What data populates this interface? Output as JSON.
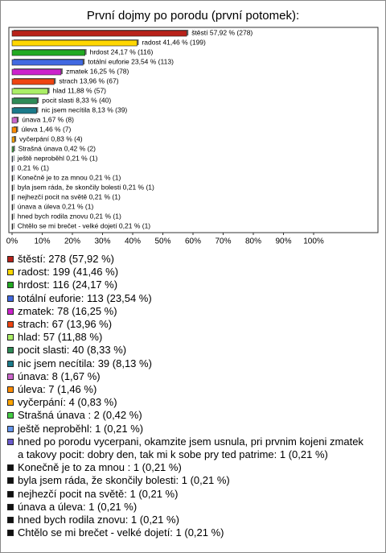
{
  "chart_data": {
    "type": "bar",
    "orientation": "horizontal",
    "title": "První dojmy po porodu (první potomek):",
    "values": [
      57.92,
      41.46,
      24.17,
      23.54,
      16.25,
      13.96,
      11.88,
      8.33,
      8.13,
      1.67,
      1.46,
      0.83,
      0.42,
      0.21,
      0.21,
      0.21,
      0.21,
      0.21,
      0.21,
      0.21,
      0.21
    ],
    "value_labels": [
      "štěstí 57,92 % (278)",
      "radost 41,46 % (199)",
      "hrdost 24,17 % (116)",
      "totální euforie 23,54 % (113)",
      "zmatek 16,25 % (78)",
      "strach 13,96 % (67)",
      "hlad 11,88 % (57)",
      "pocit slasti 8,33 % (40)",
      "nic jsem necítila 8,13 % (39)",
      "únava 1,67 % (8)",
      "úleva 1,46 % (7)",
      "vyčerpání 0,83 % (4)",
      "Strašná únava  0,42 % (2)",
      "ještě neproběhl 0,21 % (1)",
      "0,21 % (1)",
      "Konečně je to za mnou  0,21 % (1)",
      "byla jsem ráda, že skončily bolesti 0,21 % (1)",
      "nejhezčí pocit na světě 0,21 % (1)",
      "únava a úleva 0,21 % (1)",
      "hned bych rodila znovu 0,21 % (1)",
      "Chtělo se mi brečet - velké dojetí 0,21 % (1)"
    ],
    "legend": [
      "štěstí: 278 (57,92 %)",
      "radost: 199 (41,46 %)",
      "hrdost: 116 (24,17 %)",
      "totální euforie: 113 (23,54 %)",
      "zmatek: 78 (16,25 %)",
      "strach: 67 (13,96 %)",
      "hlad: 57 (11,88 %)",
      "pocit slasti: 40 (8,33 %)",
      "nic jsem necítila: 39 (8,13 %)",
      "únava: 8 (1,67 %)",
      "úleva: 7 (1,46 %)",
      "vyčerpání: 4 (0,83 %)",
      "Strašná únava : 2 (0,42 %)",
      "ještě neproběhl: 1 (0,21 %)",
      "hned po porodu vycerpani, okamzite jsem usnula, pri prvnim kojeni zmatek a takovy pocit: dobry den, tak mi k sobe pry ted patrime: 1 (0,21 %)",
      "Konečně je to za mnou : 1 (0,21 %)",
      "byla jsem ráda, že skončily bolesti: 1 (0,21 %)",
      "nejhezčí pocit na světě: 1 (0,21 %)",
      "únava a úleva: 1 (0,21 %)",
      "hned bych rodila znovu: 1 (0,21 %)",
      "Chtělo se mi brečet - velké dojetí: 1 (0,21 %)"
    ],
    "colors": [
      "#b8221a",
      "#ffd700",
      "#22aa22",
      "#4169e1",
      "#cc22cc",
      "#ee4411",
      "#aaee66",
      "#2e8b57",
      "#1a7a8a",
      "#cc66cc",
      "#ff8c00",
      "#ffa500",
      "#44cc44",
      "#6495ed",
      "#6a5acd",
      "#111111",
      "#111111",
      "#111111",
      "#111111",
      "#111111",
      "#111111"
    ],
    "xlim": [
      0,
      100
    ],
    "xticks": [
      {
        "value": 0,
        "label": "0%"
      },
      {
        "value": 10,
        "label": "10%"
      },
      {
        "value": 20,
        "label": "20%"
      },
      {
        "value": 30,
        "label": "30%"
      },
      {
        "value": 40,
        "label": "40%"
      },
      {
        "value": 50,
        "label": "50%"
      },
      {
        "value": 60,
        "label": "60%"
      },
      {
        "value": 70,
        "label": "70%"
      },
      {
        "value": 80,
        "label": "80%"
      },
      {
        "value": 90,
        "label": "90%"
      },
      {
        "value": 100,
        "label": "100%"
      }
    ]
  }
}
